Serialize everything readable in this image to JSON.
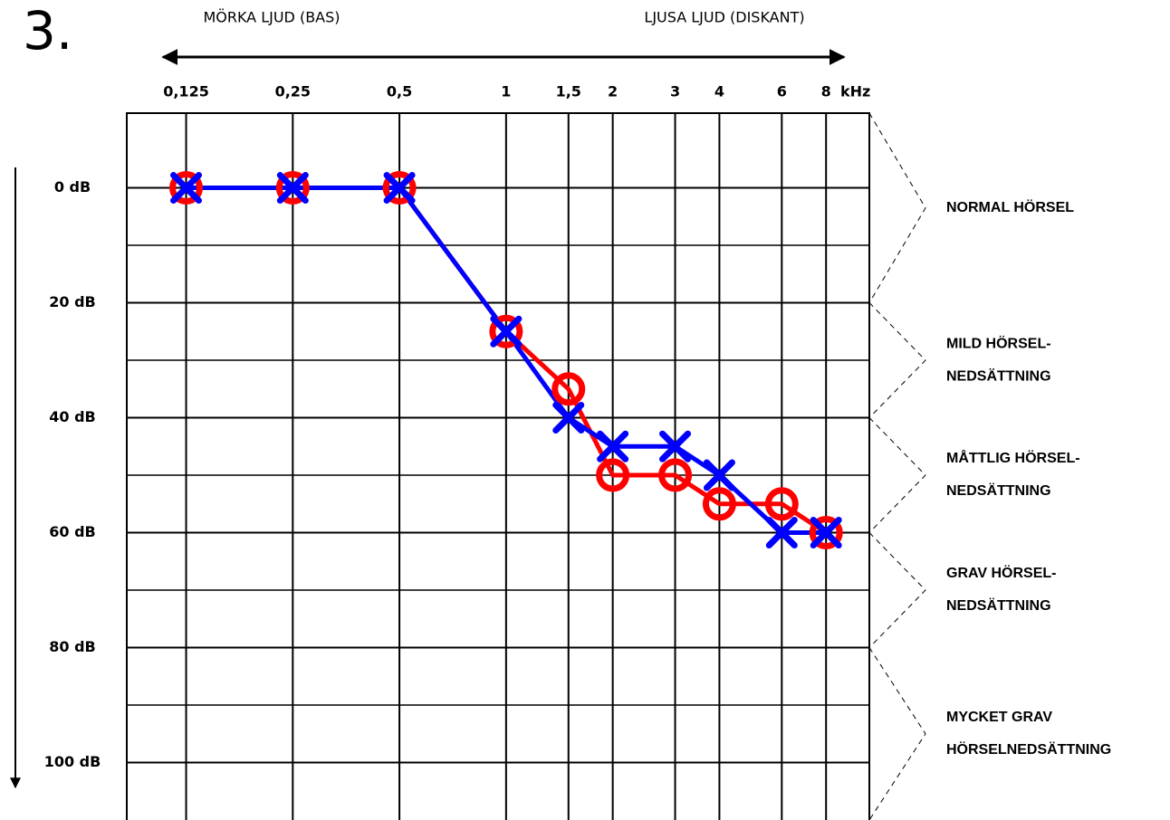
{
  "chart_data": {
    "type": "audiogram",
    "number": "3.",
    "left_heading": "MÖRKA LJUD (BAS)",
    "right_heading": "LJUSA LJUD (DISKANT)",
    "x_unit": "kHz",
    "x_log": true,
    "xlim": [
      0.085,
      10.6
    ],
    "xticks": [
      {
        "value": 0.125,
        "label": "0,125"
      },
      {
        "value": 0.25,
        "label": "0,25"
      },
      {
        "value": 0.5,
        "label": "0,5"
      },
      1,
      {
        "value": 1.5,
        "label": "1,5"
      },
      2,
      3,
      4,
      6,
      8
    ],
    "ylim": [
      -13,
      110
    ],
    "yticks": [
      {
        "value": 0,
        "label": "0 dB"
      },
      {
        "value": 20,
        "label": "20 dB"
      },
      {
        "value": 40,
        "label": "40 dB"
      },
      {
        "value": 60,
        "label": "60 dB"
      },
      {
        "value": 80,
        "label": "80 dB"
      },
      {
        "value": 100,
        "label": "100 dB"
      }
    ],
    "yminor": [
      10,
      30,
      50,
      70,
      90
    ],
    "grid": true,
    "x": [
      0.125,
      0.25,
      0.5,
      1,
      1.5,
      2,
      3,
      4,
      6,
      8
    ],
    "series": [
      {
        "color": "#ff0000",
        "marker": "circle",
        "values": [
          0,
          0,
          0,
          25,
          35,
          50,
          50,
          55,
          55,
          60
        ]
      },
      {
        "color": "#0000ff",
        "marker": "cross",
        "values": [
          0,
          0,
          0,
          25,
          40,
          45,
          45,
          50,
          60,
          60
        ]
      }
    ],
    "bands": [
      {
        "lines": [
          "NORMAL HÖRSEL"
        ],
        "from": -13,
        "to": 20
      },
      {
        "lines": [
          "MILD HÖRSEL-",
          "NEDSÄTTNING"
        ],
        "from": 20,
        "to": 40
      },
      {
        "lines": [
          "MÅTTLIG HÖRSEL-",
          "NEDSÄTTNING"
        ],
        "from": 40,
        "to": 60
      },
      {
        "lines": [
          "GRAV HÖRSEL-",
          "NEDSÄTTNING"
        ],
        "from": 60,
        "to": 80
      },
      {
        "lines": [
          "MYCKET GRAV",
          "HÖRSELNEDSÄTTNING"
        ],
        "from": 80,
        "to": 110
      }
    ]
  }
}
